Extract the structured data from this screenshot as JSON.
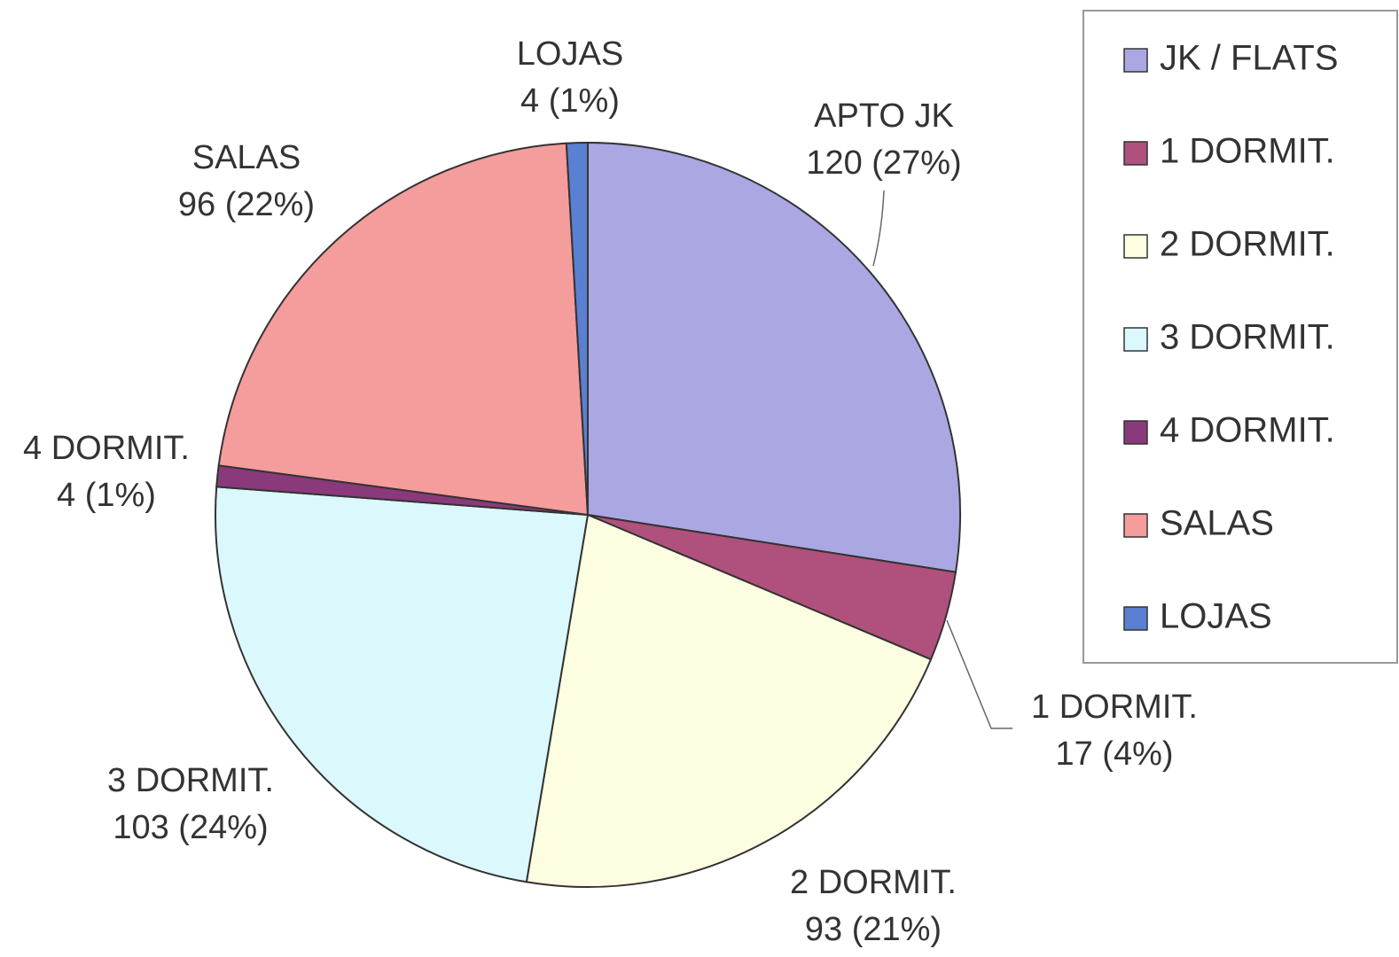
{
  "chart_data": {
    "type": "pie",
    "categories": [
      "APTO JK",
      "1 DORMIT.",
      "2 DORMIT.",
      "3 DORMIT.",
      "4 DORMIT.",
      "SALAS",
      "LOJAS"
    ],
    "values": [
      120,
      17,
      93,
      103,
      4,
      96,
      4
    ],
    "value_labels": [
      "120 (27%)",
      "17 (4%)",
      "93 (21%)",
      "103 (24%)",
      "4 (1%)",
      "96 (22%)",
      "4 (1%)"
    ],
    "colors": [
      "#aaa7e2",
      "#b0507c",
      "#fdfde2",
      "#dbf8fc",
      "#8a3a7a",
      "#f59c9c",
      "#5b80d2"
    ],
    "legend": [
      "JK / FLATS",
      "1 DORMIT.",
      "2 DORMIT.",
      "3 DORMIT.",
      "4 DORMIT.",
      "SALAS",
      "LOJAS"
    ],
    "legend_position": "right"
  }
}
